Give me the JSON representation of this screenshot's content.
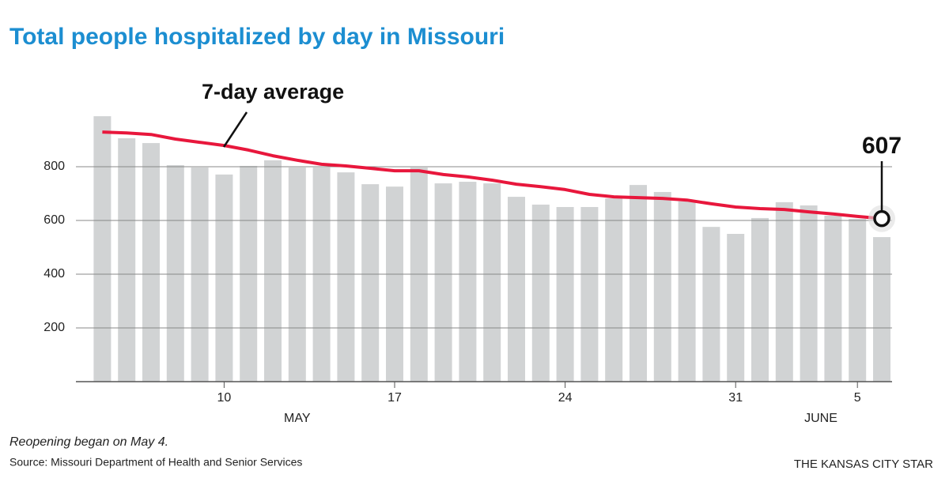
{
  "chart_data": {
    "type": "bar_line",
    "title": "Total people hospitalized by day in Missouri",
    "categories": [
      null,
      null,
      null,
      null,
      null,
      "10",
      null,
      null,
      null,
      null,
      null,
      null,
      "17",
      null,
      null,
      null,
      null,
      null,
      null,
      "24",
      null,
      null,
      null,
      null,
      null,
      null,
      "31",
      null,
      null,
      null,
      null,
      "5",
      null
    ],
    "month_labels": [
      "MAY",
      "JUNE"
    ],
    "series": [
      {
        "type": "bar",
        "color": "#d1d3d4",
        "values": [
          988,
          906,
          888,
          806,
          797,
          771,
          803,
          824,
          797,
          797,
          779,
          735,
          726,
          797,
          738,
          744,
          738,
          688,
          659,
          650,
          650,
          682,
          732,
          706,
          671,
          576,
          550,
          609,
          668,
          656,
          618,
          606,
          538
        ]
      },
      {
        "type": "line",
        "name": "7-day average",
        "color": "#e8173c",
        "values": [
          929,
          926,
          920,
          903,
          891,
          879,
          862,
          841,
          824,
          809,
          803,
          794,
          785,
          785,
          771,
          762,
          750,
          735,
          726,
          715,
          697,
          688,
          685,
          682,
          676,
          662,
          650,
          644,
          641,
          632,
          624,
          615,
          607
        ]
      }
    ],
    "ylim": [
      0,
      1000
    ],
    "yticks": [
      200,
      400,
      600,
      800
    ],
    "grid": true,
    "note": "Reopening began on May 4.",
    "source": "Source: Missouri Department of Health and Senior Services",
    "credit": "THE KANSAS CITY STAR"
  }
}
